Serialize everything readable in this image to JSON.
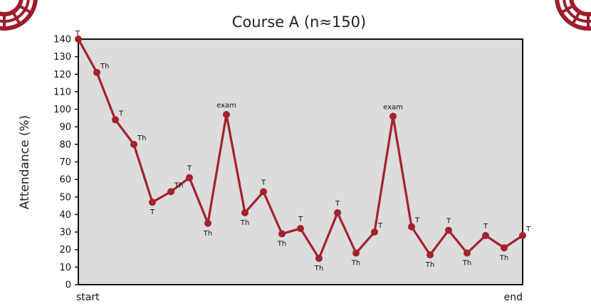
{
  "colors": {
    "plot_background": "#dcdcdc",
    "series": "#a3222f",
    "logo": "#9c1c2a"
  },
  "logos": [
    {
      "name": "university-seal-logo-left"
    },
    {
      "name": "university-seal-logo-right"
    }
  ],
  "chart_data": {
    "type": "line",
    "title": "Course A (n≈150)",
    "xlabel": "",
    "ylabel": "Attendance (%)",
    "ylim": [
      0,
      140
    ],
    "yticks": [
      0,
      10,
      20,
      30,
      40,
      50,
      60,
      70,
      80,
      90,
      100,
      110,
      120,
      130,
      140
    ],
    "x_tick_labels": [
      "start",
      "end"
    ],
    "grid": false,
    "legend": "none",
    "series": [
      {
        "values": [
          140,
          121,
          94,
          80,
          47,
          53,
          61,
          35,
          97,
          41,
          53,
          29,
          32,
          15,
          41,
          18,
          30,
          96,
          33,
          17,
          31,
          18,
          28,
          21,
          28
        ],
        "labels": [
          "T",
          "Th",
          "T",
          "Th",
          "T",
          "Th",
          "T",
          "Th",
          "exam",
          "Th",
          "T",
          "Th",
          "T",
          "Th",
          "T",
          "Th",
          "T",
          "exam",
          "T",
          "Th",
          "T",
          "Th",
          "T",
          "Th",
          "T"
        ]
      }
    ]
  }
}
